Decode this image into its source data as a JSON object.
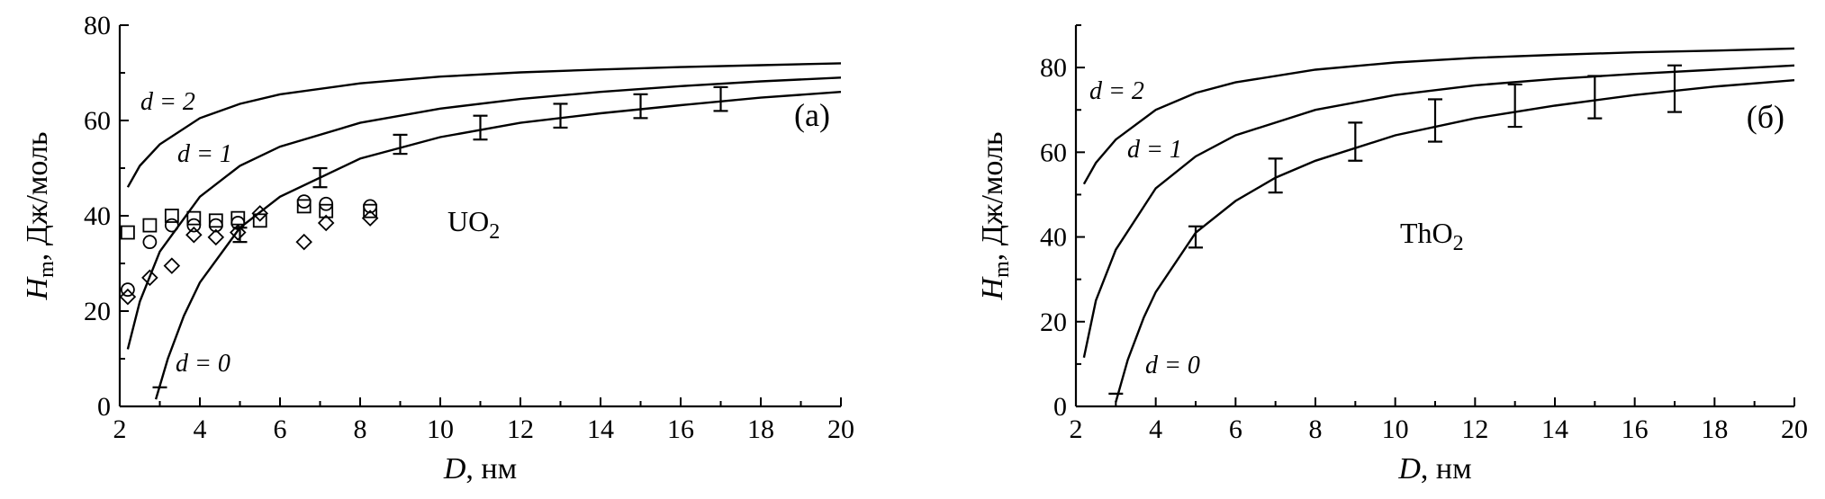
{
  "chart_data": [
    {
      "type": "line",
      "panel": "(a)",
      "compound": "UO",
      "compound_sub": "2",
      "xlabel_italic": "D",
      "xlabel_rest": ", нм",
      "ylabel_italic": "H",
      "ylabel_sub": "m",
      "ylabel_rest": ", Дж/моль",
      "xlim": [
        2,
        20
      ],
      "ylim": [
        0,
        80
      ],
      "xticks": [
        "2",
        "4",
        "6",
        "8",
        "10",
        "12",
        "14",
        "16",
        "18",
        "20"
      ],
      "yticks": [
        "0",
        "20",
        "40",
        "60",
        "80"
      ],
      "curves": [
        {
          "label": "d = 2",
          "x": [
            2.2,
            2.5,
            3,
            4,
            5,
            6,
            8,
            10,
            12,
            14,
            16,
            18,
            20
          ],
          "y": [
            46,
            50.5,
            55,
            60.5,
            63.5,
            65.5,
            67.8,
            69.2,
            70.1,
            70.7,
            71.2,
            71.6,
            72
          ]
        },
        {
          "label": "d = 1",
          "x": [
            2.2,
            2.5,
            3,
            4,
            5,
            6,
            8,
            10,
            12,
            14,
            16,
            18,
            20
          ],
          "y": [
            12,
            22,
            32.5,
            44,
            50.5,
            54.5,
            59.5,
            62.5,
            64.5,
            66,
            67.2,
            68.2,
            69
          ]
        },
        {
          "label": "d = 0",
          "x": [
            2.9,
            3.2,
            3.6,
            4,
            5,
            6,
            8,
            10,
            12,
            14,
            16,
            18,
            20
          ],
          "y": [
            1.5,
            10,
            19,
            26,
            37.5,
            44,
            52,
            56.5,
            59.5,
            61.5,
            63.2,
            64.8,
            66
          ]
        }
      ],
      "errorbars": [
        {
          "x": 3.0,
          "y": 4,
          "err": 0
        },
        {
          "x": 5.0,
          "y": 36,
          "err": 1.5
        },
        {
          "x": 7.0,
          "y": 48,
          "err": 2
        },
        {
          "x": 9.0,
          "y": 55,
          "err": 2
        },
        {
          "x": 11.0,
          "y": 58.5,
          "err": 2.5
        },
        {
          "x": 13.0,
          "y": 61,
          "err": 2.5
        },
        {
          "x": 15.0,
          "y": 63,
          "err": 2.5
        },
        {
          "x": 17.0,
          "y": 64.5,
          "err": 2.5
        }
      ],
      "squares": [
        {
          "x": 2.2,
          "y": 36.5
        },
        {
          "x": 2.75,
          "y": 38
        },
        {
          "x": 3.3,
          "y": 40
        },
        {
          "x": 3.85,
          "y": 39.5
        },
        {
          "x": 4.4,
          "y": 39
        },
        {
          "x": 4.95,
          "y": 39.5
        },
        {
          "x": 5.5,
          "y": 39
        },
        {
          "x": 6.6,
          "y": 42
        },
        {
          "x": 7.15,
          "y": 41
        },
        {
          "x": 8.25,
          "y": 41
        }
      ],
      "circles": [
        {
          "x": 2.2,
          "y": 24.5
        },
        {
          "x": 2.75,
          "y": 34.5
        },
        {
          "x": 3.3,
          "y": 38
        },
        {
          "x": 3.85,
          "y": 38
        },
        {
          "x": 4.4,
          "y": 38
        },
        {
          "x": 4.95,
          "y": 38.5
        },
        {
          "x": 6.6,
          "y": 43
        },
        {
          "x": 7.15,
          "y": 42.5
        },
        {
          "x": 8.25,
          "y": 42
        }
      ],
      "diamonds": [
        {
          "x": 2.2,
          "y": 23
        },
        {
          "x": 2.75,
          "y": 27
        },
        {
          "x": 3.3,
          "y": 29.5
        },
        {
          "x": 3.85,
          "y": 36
        },
        {
          "x": 4.4,
          "y": 35.5
        },
        {
          "x": 4.95,
          "y": 36.5
        },
        {
          "x": 5.5,
          "y": 40.5
        },
        {
          "x": 6.6,
          "y": 34.5
        },
        {
          "x": 7.15,
          "y": 38.5
        },
        {
          "x": 8.25,
          "y": 39.5
        }
      ]
    },
    {
      "type": "line",
      "panel": "(б)",
      "compound": "ThO",
      "compound_sub": "2",
      "xlabel_italic": "D",
      "xlabel_rest": ", нм",
      "ylabel_italic": "H",
      "ylabel_sub": "m",
      "ylabel_rest": ", Дж/моль",
      "xlim": [
        2,
        20
      ],
      "ylim": [
        0,
        90
      ],
      "xticks": [
        "2",
        "4",
        "6",
        "8",
        "10",
        "12",
        "14",
        "16",
        "18",
        "20"
      ],
      "yticks": [
        "0",
        "20",
        "40",
        "60",
        "80"
      ],
      "curves": [
        {
          "label": "d = 2",
          "x": [
            2.2,
            2.5,
            3,
            4,
            5,
            6,
            8,
            10,
            12,
            14,
            16,
            18,
            20
          ],
          "y": [
            52.5,
            57.5,
            63,
            70,
            74,
            76.5,
            79.5,
            81.2,
            82.3,
            83,
            83.6,
            84,
            84.5
          ]
        },
        {
          "label": "d = 1",
          "x": [
            2.2,
            2.5,
            3,
            4,
            5,
            6,
            8,
            10,
            12,
            14,
            16,
            18,
            20
          ],
          "y": [
            11.5,
            25,
            37,
            51.5,
            59,
            64,
            70,
            73.5,
            75.8,
            77.3,
            78.5,
            79.5,
            80.5
          ]
        },
        {
          "label": "d = 0",
          "x": [
            3.0,
            3.3,
            3.7,
            4,
            5,
            6,
            7,
            8,
            10,
            12,
            14,
            16,
            18,
            20
          ],
          "y": [
            1,
            11,
            21,
            27,
            41,
            48.5,
            54,
            58,
            64,
            68,
            71,
            73.5,
            75.5,
            77
          ]
        }
      ],
      "errorbars": [
        {
          "x": 3.0,
          "y": 3,
          "err": 0
        },
        {
          "x": 5.0,
          "y": 40,
          "err": 2.5
        },
        {
          "x": 7.0,
          "y": 54.5,
          "err": 4
        },
        {
          "x": 9.0,
          "y": 62.5,
          "err": 4.5
        },
        {
          "x": 11.0,
          "y": 67.5,
          "err": 5
        },
        {
          "x": 13.0,
          "y": 71,
          "err": 5
        },
        {
          "x": 15.0,
          "y": 73,
          "err": 5
        },
        {
          "x": 17.0,
          "y": 75,
          "err": 5.5
        }
      ],
      "squares": [],
      "circles": [],
      "diamonds": []
    }
  ]
}
